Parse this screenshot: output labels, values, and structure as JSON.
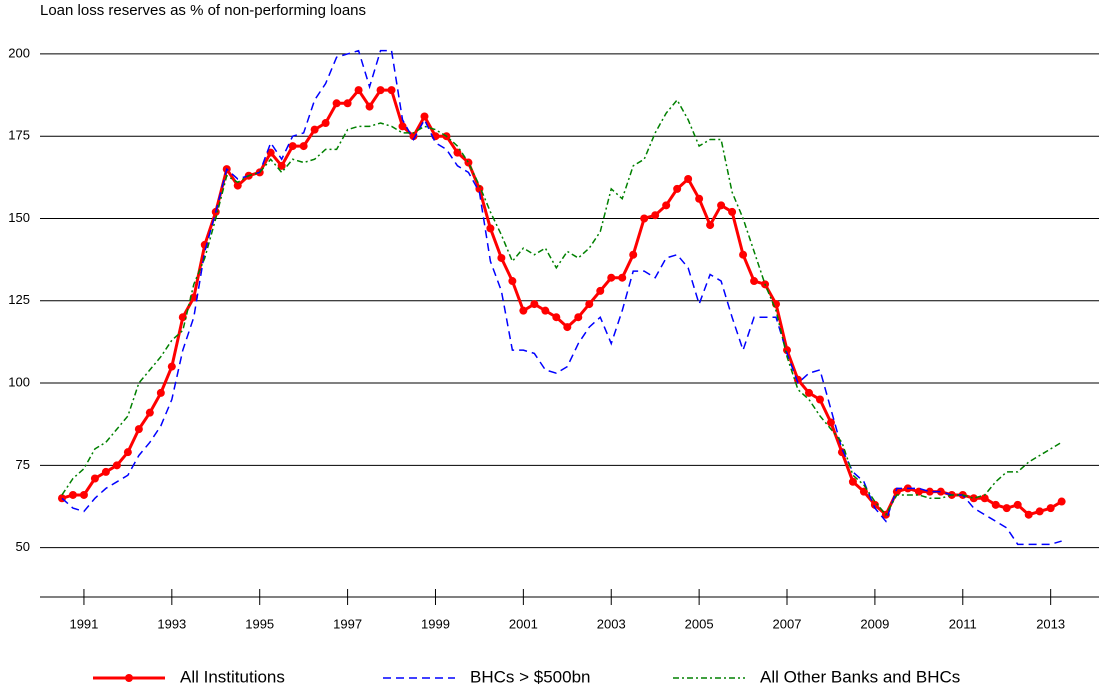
{
  "chart_data": {
    "type": "line",
    "title": "Loan loss reserves as % of non-performing loans",
    "x": [
      1990.5,
      1990.75,
      1991,
      1991.25,
      1991.5,
      1991.75,
      1992,
      1992.25,
      1992.5,
      1992.75,
      1993,
      1993.25,
      1993.5,
      1993.75,
      1994,
      1994.25,
      1994.5,
      1994.75,
      1995,
      1995.25,
      1995.5,
      1995.75,
      1996,
      1996.25,
      1996.5,
      1996.75,
      1997,
      1997.25,
      1997.5,
      1997.75,
      1998,
      1998.25,
      1998.5,
      1998.75,
      1999,
      1999.25,
      1999.5,
      1999.75,
      2000,
      2000.25,
      2000.5,
      2000.75,
      2001,
      2001.25,
      2001.5,
      2001.75,
      2002,
      2002.25,
      2002.5,
      2002.75,
      2003,
      2003.25,
      2003.5,
      2003.75,
      2004,
      2004.25,
      2004.5,
      2004.75,
      2005,
      2005.25,
      2005.5,
      2005.75,
      2006,
      2006.25,
      2006.5,
      2006.75,
      2007,
      2007.25,
      2007.5,
      2007.75,
      2008,
      2008.25,
      2008.5,
      2008.75,
      2009,
      2009.25,
      2009.5,
      2009.75,
      2010,
      2010.25,
      2010.5,
      2010.75,
      2011,
      2011.25,
      2011.5,
      2011.75,
      2012,
      2012.25,
      2012.5,
      2012.75,
      2013,
      2013.25
    ],
    "series": [
      {
        "name": "All Institutions",
        "color": "#ff0000",
        "style": "solid",
        "markers": true,
        "values": [
          65,
          66,
          66,
          71,
          73,
          75,
          79,
          86,
          91,
          97,
          105,
          120,
          126,
          142,
          152,
          165,
          160,
          163,
          164,
          170,
          166,
          172,
          172,
          177,
          179,
          185,
          185,
          189,
          184,
          189,
          189,
          178,
          175,
          181,
          175,
          175,
          170,
          167,
          159,
          147,
          138,
          131,
          122,
          124,
          122,
          120,
          117,
          120,
          124,
          128,
          132,
          132,
          139,
          150,
          151,
          154,
          159,
          162,
          156,
          148,
          154,
          152,
          139,
          131,
          130,
          124,
          110,
          101,
          97,
          95,
          88,
          79,
          70,
          67,
          63,
          60,
          67,
          68,
          67,
          67,
          67,
          66,
          66,
          65,
          65,
          63,
          62,
          63,
          60,
          61,
          62,
          64
        ]
      },
      {
        "name": "BHCs > $500bn",
        "color": "#0000ff",
        "style": "dashed",
        "markers": false,
        "values": [
          65,
          62,
          61,
          65,
          68,
          70,
          72,
          78,
          82,
          87,
          95,
          110,
          120,
          140,
          152,
          165,
          162,
          163,
          164,
          173,
          168,
          175,
          176,
          186,
          191,
          199,
          200,
          201,
          190,
          201,
          201,
          180,
          174,
          180,
          173,
          171,
          166,
          164,
          158,
          137,
          128,
          110,
          110,
          109,
          104,
          103,
          105,
          112,
          117,
          120,
          112,
          122,
          134,
          134,
          132,
          138,
          139,
          135,
          124,
          133,
          131,
          120,
          110,
          120,
          120,
          120,
          109,
          100,
          103,
          104,
          92,
          80,
          73,
          70,
          62,
          58,
          68,
          68,
          68,
          67,
          67,
          66,
          66,
          62,
          60,
          58,
          56,
          51,
          51,
          51,
          51,
          52
        ]
      },
      {
        "name": "All Other Banks and BHCs",
        "color": "#008000",
        "style": "dashdot",
        "markers": false,
        "values": [
          66,
          71,
          74,
          80,
          82,
          86,
          90,
          100,
          104,
          108,
          113,
          116,
          130,
          138,
          150,
          163,
          161,
          163,
          164,
          168,
          164,
          168,
          167,
          168,
          171,
          171,
          177,
          178,
          178,
          179,
          178,
          176,
          176,
          178,
          177,
          175,
          172,
          167,
          160,
          152,
          145,
          137,
          141,
          139,
          141,
          135,
          140,
          138,
          141,
          146,
          159,
          156,
          166,
          168,
          176,
          182,
          186,
          180,
          172,
          174,
          174,
          158,
          150,
          140,
          130,
          122,
          108,
          98,
          95,
          90,
          86,
          82,
          72,
          69,
          64,
          60,
          66,
          66,
          66,
          65,
          65,
          66,
          66,
          65,
          66,
          70,
          73,
          73,
          76,
          78,
          80,
          82
        ]
      }
    ],
    "xlim": [
      1990,
      2014.1
    ],
    "xticks": [
      1991,
      1993,
      1995,
      1997,
      1999,
      2001,
      2003,
      2005,
      2007,
      2009,
      2011,
      2013
    ],
    "ylim": [
      35,
      210
    ],
    "yticks": [
      50,
      75,
      100,
      125,
      150,
      175,
      200
    ],
    "grid": true,
    "legend": "bottom"
  }
}
